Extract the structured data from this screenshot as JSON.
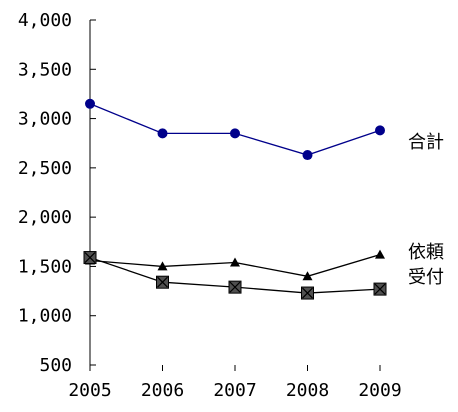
{
  "chart_data": {
    "type": "line",
    "x": [
      "2005",
      "2006",
      "2007",
      "2008",
      "2009"
    ],
    "ylim": [
      500,
      4000
    ],
    "yticks": [
      "4,000",
      "3,500",
      "3,000",
      "2,500",
      "2,000",
      "1,500",
      "1,000",
      "500"
    ],
    "ytick_values": [
      4000,
      3500,
      3000,
      2500,
      2000,
      1500,
      1000,
      500
    ],
    "grid": false,
    "legend": "inline-right",
    "series": [
      {
        "name": "合計",
        "values": [
          3150,
          2850,
          2850,
          2630,
          2880
        ],
        "marker": "circle",
        "color": "#00008b",
        "line_color": "#00008b"
      },
      {
        "name": "依頼",
        "values": [
          1560,
          1500,
          1540,
          1400,
          1620
        ],
        "marker": "triangle",
        "color": "#000000",
        "line_color": "#000000"
      },
      {
        "name": "受付",
        "values": [
          1590,
          1340,
          1290,
          1230,
          1270
        ],
        "marker": "square-x",
        "color": "#505050",
        "line_color": "#000000"
      }
    ]
  }
}
